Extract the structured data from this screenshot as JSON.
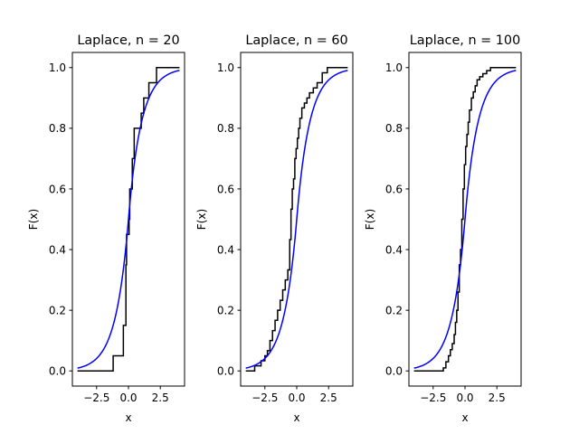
{
  "figure": {
    "background": "#ffffff"
  },
  "chart_data": [
    {
      "type": "line",
      "title": "Laplace, n = 20",
      "xlabel": "x",
      "ylabel": "F(x)",
      "xlim": [
        -4.4,
        4.4
      ],
      "ylim": [
        -0.05,
        1.05
      ],
      "xticks": [
        -2.5,
        0.0,
        2.5
      ],
      "xtick_labels": [
        "−2.5",
        "0.0",
        "2.5"
      ],
      "yticks": [
        0.0,
        0.2,
        0.4,
        0.6,
        0.8,
        1.0
      ],
      "ytick_labels": [
        "0.0",
        "0.2",
        "0.4",
        "0.6",
        "0.8",
        "1.0"
      ],
      "grid": false,
      "legend": "none",
      "series": [
        {
          "kind": "empirical-cdf",
          "color": "#000000",
          "x": [
            -4.0,
            -1.2,
            -0.4,
            -0.2,
            -0.15,
            0.05,
            0.1,
            0.3,
            0.45,
            1.0,
            1.2,
            1.6,
            2.2,
            4.0
          ],
          "y": [
            0.0,
            0.05,
            0.15,
            0.35,
            0.45,
            0.5,
            0.6,
            0.7,
            0.8,
            0.85,
            0.9,
            0.95,
            1.0,
            1.0
          ]
        },
        {
          "kind": "laplace-cdf",
          "color": "#0000ff",
          "x_range": [
            -4.0,
            4.0
          ],
          "location": 0.0,
          "scale": 1.0
        }
      ]
    },
    {
      "type": "line",
      "title": "Laplace, n = 60",
      "xlabel": "x",
      "ylabel": "F(x)",
      "xlim": [
        -4.4,
        4.4
      ],
      "ylim": [
        -0.05,
        1.05
      ],
      "xticks": [
        -2.5,
        0.0,
        2.5
      ],
      "xtick_labels": [
        "−2.5",
        "0.0",
        "2.5"
      ],
      "yticks": [
        0.0,
        0.2,
        0.4,
        0.6,
        0.8,
        1.0
      ],
      "ytick_labels": [
        "0.0",
        "0.2",
        "0.4",
        "0.6",
        "0.8",
        "1.0"
      ],
      "grid": false,
      "legend": "none",
      "series": [
        {
          "kind": "empirical-cdf",
          "color": "#000000",
          "x": [
            -4.0,
            -3.3,
            -2.8,
            -2.5,
            -2.3,
            -2.1,
            -1.9,
            -1.7,
            -1.5,
            -1.3,
            -1.1,
            -0.9,
            -0.7,
            -0.55,
            -0.45,
            -0.35,
            -0.25,
            -0.15,
            -0.05,
            0.05,
            0.15,
            0.25,
            0.4,
            0.6,
            0.8,
            1.0,
            1.3,
            1.6,
            2.0,
            2.4,
            4.0
          ],
          "y": [
            0.0,
            0.0167,
            0.0333,
            0.05,
            0.0667,
            0.1,
            0.133,
            0.167,
            0.2,
            0.233,
            0.267,
            0.3,
            0.333,
            0.433,
            0.533,
            0.6,
            0.633,
            0.7,
            0.733,
            0.767,
            0.8,
            0.833,
            0.867,
            0.883,
            0.9,
            0.917,
            0.933,
            0.95,
            0.983,
            1.0,
            1.0
          ]
        },
        {
          "kind": "laplace-cdf",
          "color": "#0000ff",
          "x_range": [
            -4.0,
            4.0
          ],
          "location": 0.0,
          "scale": 1.0
        }
      ]
    },
    {
      "type": "line",
      "title": "Laplace, n = 100",
      "xlabel": "x",
      "ylabel": "F(x)",
      "xlim": [
        -4.4,
        4.4
      ],
      "ylim": [
        -0.05,
        1.05
      ],
      "xticks": [
        -2.5,
        0.0,
        2.5
      ],
      "xtick_labels": [
        "−2.5",
        "0.0",
        "2.5"
      ],
      "yticks": [
        0.0,
        0.2,
        0.4,
        0.6,
        0.8,
        1.0
      ],
      "ytick_labels": [
        "0.0",
        "0.2",
        "0.4",
        "0.6",
        "0.8",
        "1.0"
      ],
      "grid": false,
      "legend": "none",
      "series": [
        {
          "kind": "empirical-cdf",
          "color": "#000000",
          "x": [
            -4.0,
            -1.7,
            -1.5,
            -1.3,
            -1.15,
            -1.0,
            -0.85,
            -0.75,
            -0.65,
            -0.55,
            -0.45,
            -0.35,
            -0.25,
            -0.15,
            -0.05,
            0.05,
            0.15,
            0.25,
            0.35,
            0.5,
            0.65,
            0.8,
            0.95,
            1.15,
            1.4,
            1.7,
            2.0,
            2.4,
            4.0
          ],
          "y": [
            0.0,
            0.01,
            0.03,
            0.05,
            0.07,
            0.09,
            0.12,
            0.16,
            0.2,
            0.26,
            0.35,
            0.4,
            0.5,
            0.6,
            0.68,
            0.74,
            0.78,
            0.82,
            0.86,
            0.9,
            0.92,
            0.94,
            0.96,
            0.97,
            0.98,
            0.99,
            1.0,
            1.0,
            1.0
          ]
        },
        {
          "kind": "laplace-cdf",
          "color": "#0000ff",
          "x_range": [
            -4.0,
            4.0
          ],
          "location": 0.0,
          "scale": 1.0
        }
      ]
    }
  ]
}
